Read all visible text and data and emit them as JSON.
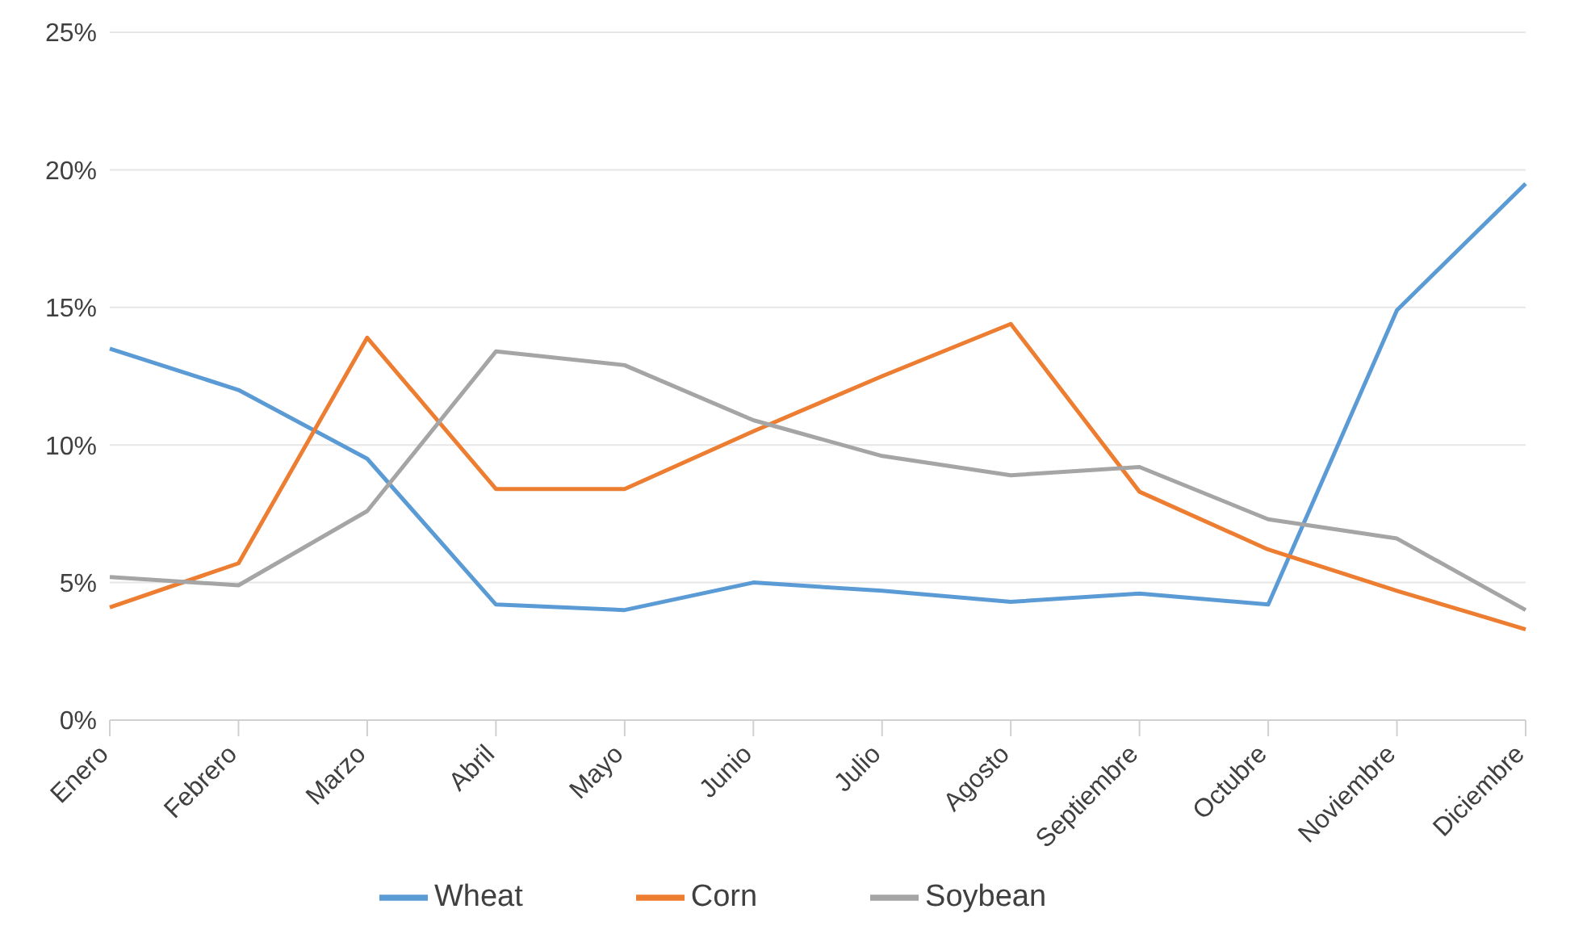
{
  "chart_data": {
    "type": "line",
    "categories": [
      "Enero",
      "Febrero",
      "Marzo",
      "Abril",
      "Mayo",
      "Junio",
      "Julio",
      "Agosto",
      "Septiembre",
      "Octubre",
      "Noviembre",
      "Diciembre"
    ],
    "series": [
      {
        "name": "Wheat",
        "color": "#5b9bd5",
        "values": [
          13.5,
          12.0,
          9.5,
          4.2,
          4.0,
          5.0,
          4.7,
          4.3,
          4.6,
          4.2,
          14.9,
          19.5
        ]
      },
      {
        "name": "Corn",
        "color": "#ed7d31",
        "values": [
          4.1,
          5.7,
          13.9,
          8.4,
          8.4,
          10.5,
          12.5,
          14.4,
          8.3,
          6.2,
          4.7,
          3.3
        ]
      },
      {
        "name": "Soybean",
        "color": "#a5a5a5",
        "values": [
          5.2,
          4.9,
          7.6,
          13.4,
          12.9,
          10.9,
          9.6,
          8.9,
          9.2,
          7.3,
          6.6,
          4.0
        ]
      }
    ],
    "ylim": [
      0,
      25
    ],
    "yticks": [
      {
        "value": 0,
        "label": "0%"
      },
      {
        "value": 5,
        "label": "5%"
      },
      {
        "value": 10,
        "label": "10%"
      },
      {
        "value": 15,
        "label": "15%"
      },
      {
        "value": 20,
        "label": "20%"
      },
      {
        "value": 25,
        "label": "25%"
      }
    ],
    "grid": "y",
    "legend": "bottom",
    "marker": "none",
    "line_style": "solid"
  }
}
